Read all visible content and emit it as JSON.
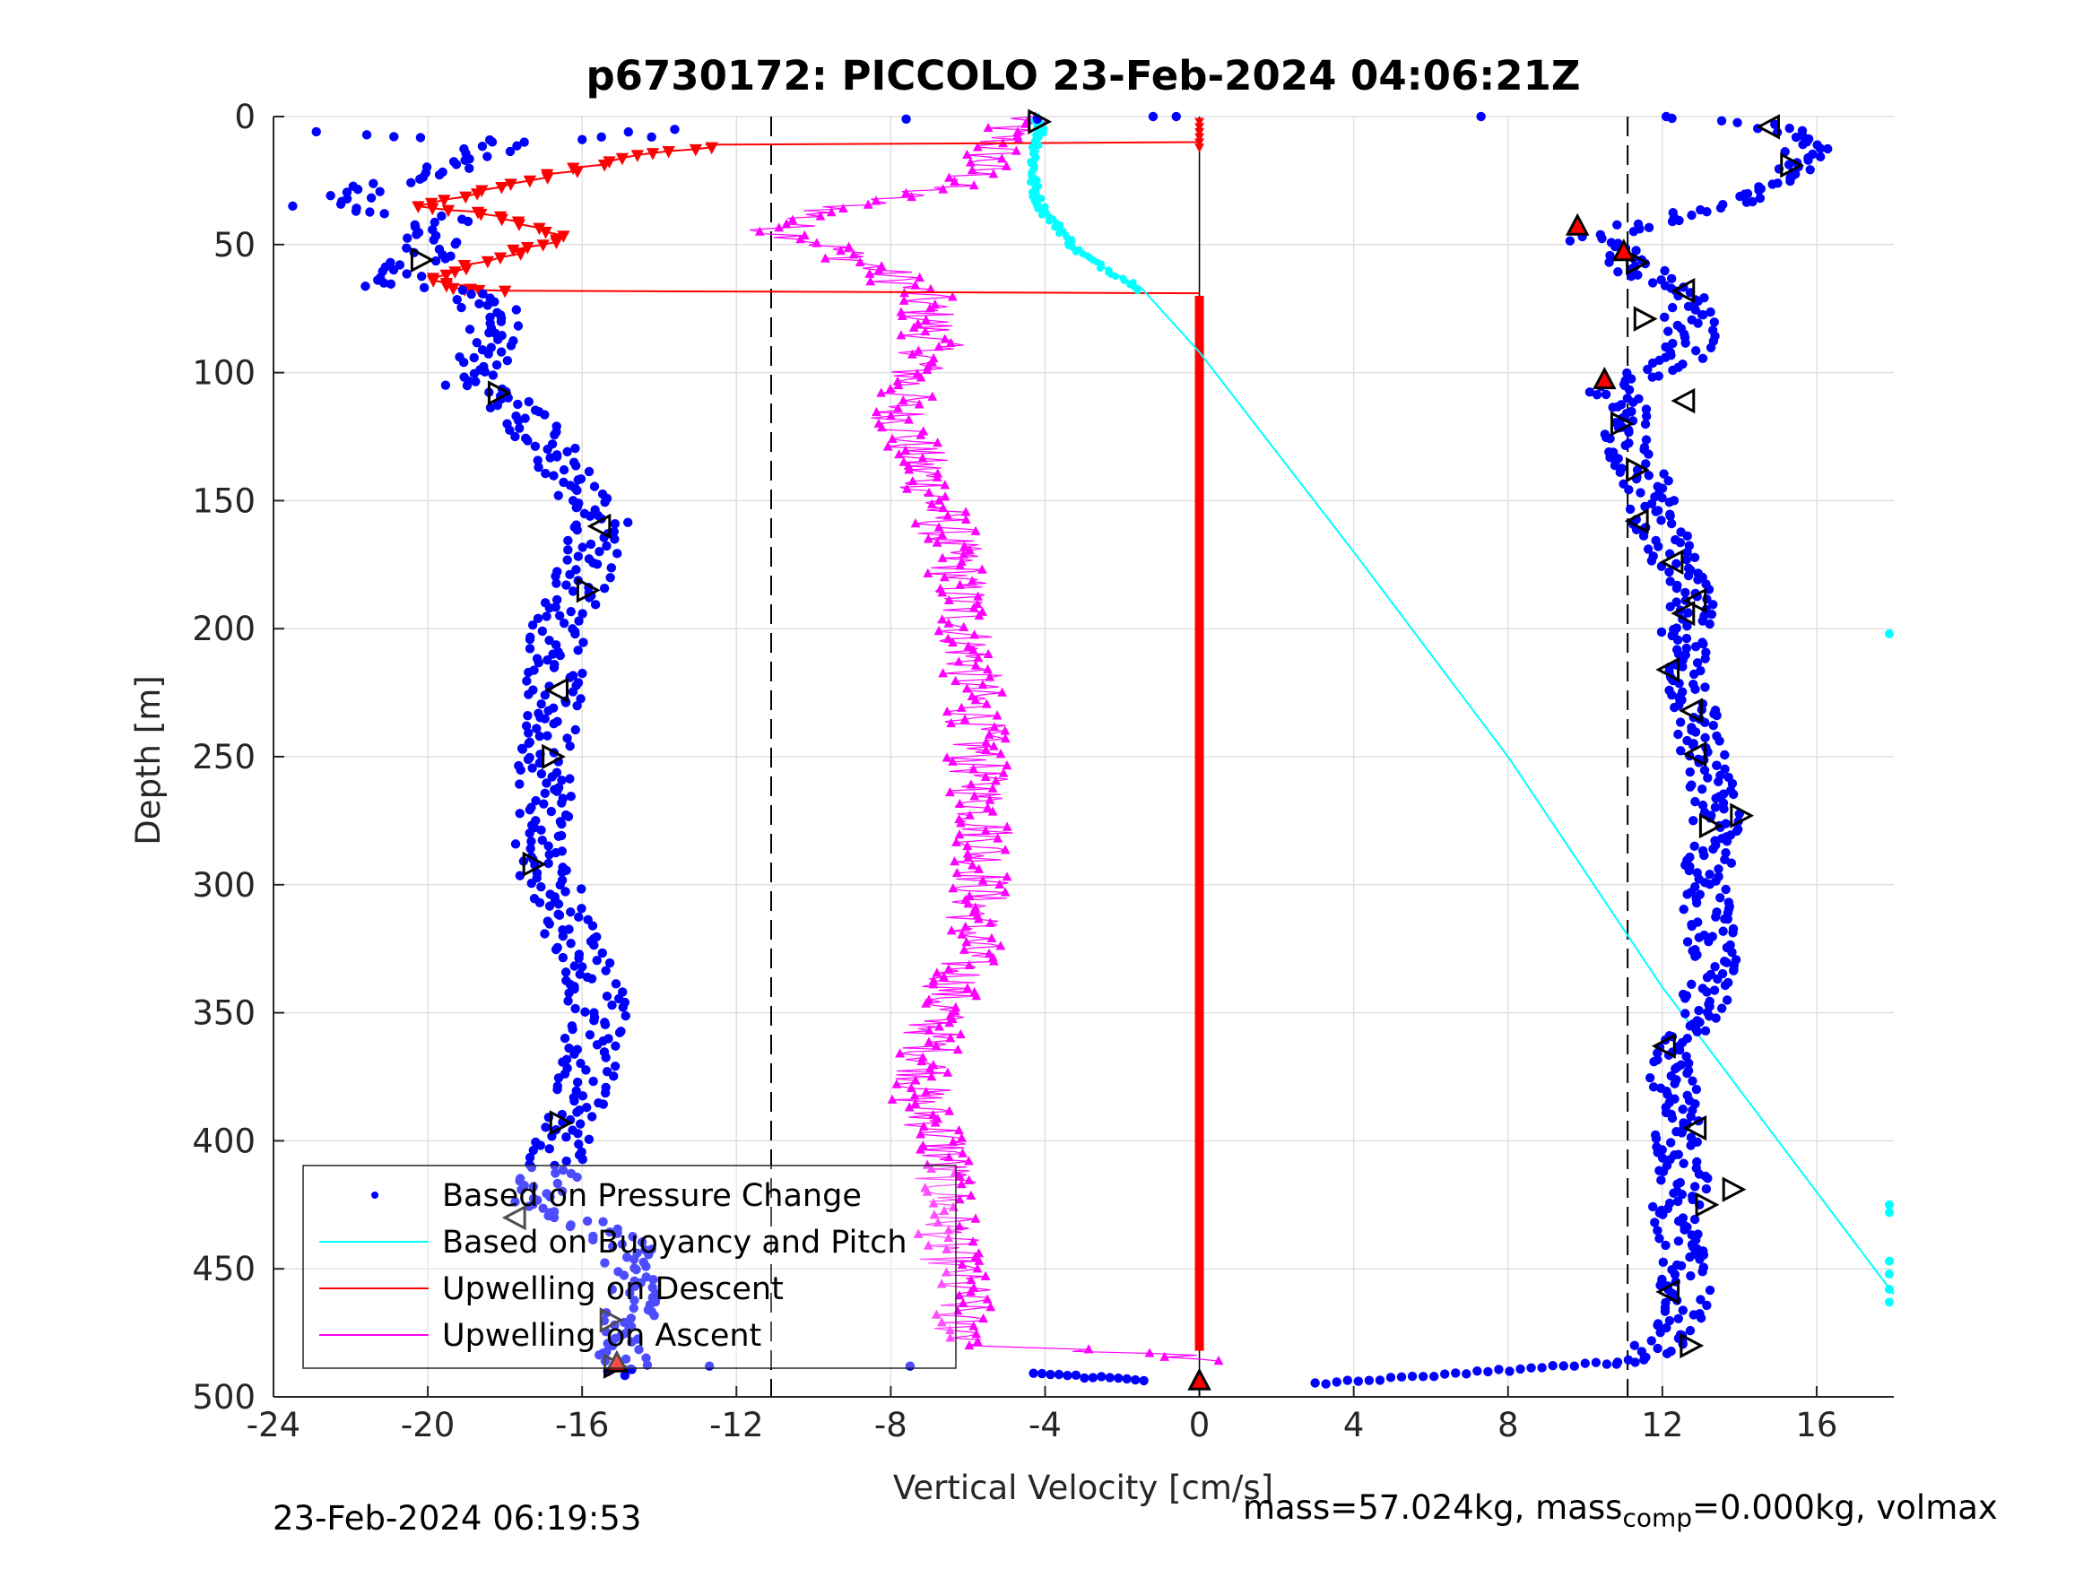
{
  "chart_data": {
    "type": "scatter",
    "title": "p6730172: PICCOLO 23-Feb-2024 04:06:21Z",
    "xlabel": "Vertical Velocity [cm/s]",
    "ylabel": "Depth [m]",
    "xlim": [
      -24,
      18
    ],
    "ylim": [
      0,
      500
    ],
    "y_reversed": true,
    "xticks": [
      -24,
      -20,
      -16,
      -12,
      -8,
      -4,
      0,
      4,
      8,
      12,
      16
    ],
    "yticks": [
      0,
      50,
      100,
      150,
      200,
      250,
      300,
      350,
      400,
      450,
      500
    ],
    "grid": true,
    "legend_position": "lower-left",
    "reference_lines_x": [
      -11.1,
      11.1
    ],
    "series": [
      {
        "name": "Based on Pressure Change",
        "color": "#0000ff",
        "marker": "dot",
        "dive_points": [
          [
            -23,
            6
          ],
          [
            -21.5,
            28
          ],
          [
            -22.8,
            35
          ],
          [
            -20.5,
            25
          ],
          [
            -19,
            18
          ],
          [
            -18.5,
            14
          ],
          [
            -18,
            10
          ],
          [
            -19.5,
            40
          ],
          [
            -20,
            45
          ],
          [
            -19.8,
            50
          ],
          [
            -20.2,
            56
          ],
          [
            -20.8,
            62
          ],
          [
            -21.5,
            66
          ],
          [
            -19.5,
            68
          ],
          [
            -18.5,
            72
          ],
          [
            -18.2,
            85
          ],
          [
            -18.6,
            95
          ],
          [
            -18.8,
            105
          ],
          [
            -18,
            110
          ],
          [
            -17.4,
            120
          ],
          [
            -16.8,
            130
          ],
          [
            -16.3,
            140
          ],
          [
            -15.9,
            150
          ],
          [
            -15.5,
            158
          ],
          [
            -15.7,
            170
          ],
          [
            -16.1,
            185
          ],
          [
            -16.6,
            200
          ],
          [
            -16.7,
            215
          ],
          [
            -16.8,
            230
          ],
          [
            -16.9,
            245
          ],
          [
            -16.9,
            260
          ],
          [
            -16.9,
            275
          ],
          [
            -17.2,
            290
          ],
          [
            -16.5,
            305
          ],
          [
            -16.2,
            320
          ],
          [
            -15.7,
            335
          ],
          [
            -15.6,
            350
          ],
          [
            -15.8,
            365
          ],
          [
            -15.9,
            380
          ],
          [
            -16.4,
            395
          ],
          [
            -16.7,
            410
          ],
          [
            -17.3,
            425
          ],
          [
            -16.1,
            432
          ],
          [
            -14.9,
            440
          ],
          [
            -14.6,
            455
          ],
          [
            -14.7,
            470
          ],
          [
            -15.1,
            485
          ],
          [
            -14.8,
            492
          ]
        ],
        "climb_points": [
          [
            0,
            494
          ],
          [
            2,
            496
          ],
          [
            4,
            495
          ],
          [
            6,
            492
          ],
          [
            8,
            490
          ],
          [
            10,
            488
          ],
          [
            11.5,
            485
          ],
          [
            12.3,
            475
          ],
          [
            12.6,
            460
          ],
          [
            12.5,
            445
          ],
          [
            12.3,
            430
          ],
          [
            12.6,
            415
          ],
          [
            12.4,
            400
          ],
          [
            12.2,
            385
          ],
          [
            12.4,
            370
          ],
          [
            12.8,
            355
          ],
          [
            13.2,
            340
          ],
          [
            13.3,
            325
          ],
          [
            13.2,
            310
          ],
          [
            13.1,
            295
          ],
          [
            13.5,
            280
          ],
          [
            13.3,
            265
          ],
          [
            13.0,
            250
          ],
          [
            12.9,
            235
          ],
          [
            12.7,
            220
          ],
          [
            12.6,
            205
          ],
          [
            12.7,
            190
          ],
          [
            12.3,
            175
          ],
          [
            11.9,
            160
          ],
          [
            11.6,
            145
          ],
          [
            11.2,
            130
          ],
          [
            11.0,
            115
          ],
          [
            10.6,
            105
          ],
          [
            11.5,
            100
          ],
          [
            12.5,
            95
          ],
          [
            12.8,
            85
          ],
          [
            12.6,
            72
          ],
          [
            11.8,
            65
          ],
          [
            11.0,
            55
          ],
          [
            10.2,
            48
          ],
          [
            10.8,
            45
          ],
          [
            11.5,
            42
          ],
          [
            12.8,
            38
          ],
          [
            14.0,
            35
          ],
          [
            15.0,
            28
          ],
          [
            15.5,
            18
          ],
          [
            15.8,
            10
          ],
          [
            15.2,
            6
          ],
          [
            14.8,
            4
          ],
          [
            13.5,
            2
          ],
          [
            12.0,
            1
          ]
        ]
      },
      {
        "name": "Based on Buoyancy and Pitch",
        "color": "#00ffff",
        "marker": "line",
        "points": [
          [
            -4.2,
            0
          ],
          [
            -4.1,
            5
          ],
          [
            -4.2,
            10
          ],
          [
            -4.3,
            18
          ],
          [
            -4.3,
            26
          ],
          [
            -4.2,
            32
          ],
          [
            -4.0,
            38
          ],
          [
            -3.6,
            44
          ],
          [
            -3.2,
            52
          ],
          [
            -2.6,
            58
          ],
          [
            -2.0,
            63
          ],
          [
            -1.5,
            67
          ],
          [
            0,
            92
          ],
          [
            4,
            170
          ],
          [
            8,
            250
          ],
          [
            12,
            340
          ],
          [
            18,
            460
          ]
        ],
        "outlier_x": 18,
        "outlier_depths": [
          202,
          425,
          428,
          447,
          452,
          458,
          463
        ]
      },
      {
        "name": "Upwelling on Descent",
        "color": "#ff0000",
        "marker": "triangle-down",
        "points": [
          [
            -12.8,
            12
          ],
          [
            -14.5,
            15
          ],
          [
            -16,
            20
          ],
          [
            -17.5,
            25
          ],
          [
            -19,
            30
          ],
          [
            -20,
            35
          ],
          [
            -18.5,
            38
          ],
          [
            -17.5,
            42
          ],
          [
            -16.5,
            48
          ],
          [
            -17.5,
            52
          ],
          [
            -19,
            58
          ],
          [
            -20,
            63
          ],
          [
            -19.5,
            67
          ],
          [
            -18,
            68
          ]
        ],
        "constant_x": 0,
        "constant_range": [
          70,
          482
        ]
      },
      {
        "name": "Upwelling on Ascent",
        "color": "#ff00ff",
        "marker": "triangle-up",
        "points": [
          [
            -4.5,
            0
          ],
          [
            -5,
            5
          ],
          [
            -5.4,
            15
          ],
          [
            -6,
            25
          ],
          [
            -7.5,
            30
          ],
          [
            -10,
            38
          ],
          [
            -11,
            45
          ],
          [
            -10,
            48
          ],
          [
            -9,
            55
          ],
          [
            -8,
            62
          ],
          [
            -7.2,
            70
          ],
          [
            -7,
            80
          ],
          [
            -6.9,
            90
          ],
          [
            -7.5,
            102
          ],
          [
            -7.8,
            115
          ],
          [
            -7.4,
            130
          ],
          [
            -7.0,
            145
          ],
          [
            -6.6,
            160
          ],
          [
            -6.3,
            175
          ],
          [
            -6.2,
            190
          ],
          [
            -6.0,
            205
          ],
          [
            -5.9,
            220
          ],
          [
            -5.8,
            235
          ],
          [
            -5.8,
            250
          ],
          [
            -5.7,
            265
          ],
          [
            -5.5,
            280
          ],
          [
            -5.6,
            295
          ],
          [
            -5.8,
            310
          ],
          [
            -5.9,
            325
          ],
          [
            -6.4,
            340
          ],
          [
            -6.9,
            355
          ],
          [
            -7.0,
            370
          ],
          [
            -7.3,
            385
          ],
          [
            -6.6,
            400
          ],
          [
            -6.6,
            415
          ],
          [
            -6.5,
            430
          ],
          [
            -6.5,
            445
          ],
          [
            -6.1,
            460
          ],
          [
            -6.3,
            472
          ],
          [
            -5.5,
            480
          ],
          [
            -0.3,
            484
          ],
          [
            0,
            490
          ]
        ]
      }
    ],
    "markers": {
      "right_triangles": [
        [
          -4.2,
          2
        ],
        [
          -20.2,
          56
        ],
        [
          -18.2,
          108
        ],
        [
          -15.9,
          185
        ],
        [
          -16.8,
          250
        ],
        [
          -17.3,
          292
        ],
        [
          -16.6,
          393
        ],
        [
          -15.3,
          470
        ],
        [
          -15.2,
          488
        ],
        [
          15.3,
          19
        ],
        [
          11.3,
          57
        ],
        [
          11.5,
          79
        ],
        [
          10.9,
          120
        ],
        [
          11.3,
          138
        ],
        [
          13.2,
          277
        ],
        [
          14.0,
          273
        ],
        [
          13.1,
          425
        ],
        [
          13.8,
          419
        ],
        [
          12.7,
          480
        ]
      ],
      "left_triangles": [
        [
          14.8,
          4
        ],
        [
          -15.5,
          160
        ],
        [
          -16.6,
          224
        ],
        [
          -17.7,
          430
        ],
        [
          12.6,
          68
        ],
        [
          11.4,
          158
        ],
        [
          12.3,
          174
        ],
        [
          12.6,
          194
        ],
        [
          12.9,
          189
        ],
        [
          12.2,
          216
        ],
        [
          12.8,
          232
        ],
        [
          12.9,
          249
        ],
        [
          12.1,
          363
        ],
        [
          12.9,
          395
        ],
        [
          12.2,
          459
        ],
        [
          12.6,
          111
        ]
      ],
      "red_filled": [
        [
          9.8,
          43
        ],
        [
          11.0,
          53
        ],
        [
          10.5,
          103
        ],
        [
          -15.1,
          487
        ],
        [
          0,
          494
        ]
      ]
    }
  },
  "footer": {
    "timestamp": "23-Feb-2024 06:19:53",
    "mass_text": "mass=57.024kg, mass",
    "comp_sub": "comp",
    "comp_text": "=0.000kg, volmax"
  }
}
